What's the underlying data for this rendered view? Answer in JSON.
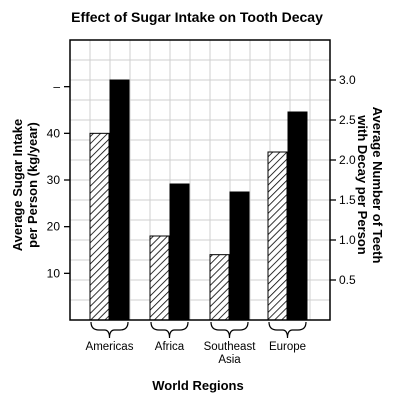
{
  "chart_data": {
    "type": "bar",
    "title": "Effect of Sugar Intake on Tooth Decay",
    "xlabel": "World Regions",
    "categories": [
      "Americas",
      "Africa",
      "Southeast Asia",
      "Europe"
    ],
    "category_lines": [
      [
        "Americas"
      ],
      [
        "Africa"
      ],
      [
        "Southeast",
        "Asia"
      ],
      [
        "Europe"
      ]
    ],
    "left_axis": {
      "label_lines": [
        "Average Sugar Intake",
        "per Person (kg/year)"
      ],
      "ylim": [
        0,
        60
      ],
      "tick_values": [
        10,
        20,
        30,
        40,
        50
      ],
      "tick_labels": [
        "10",
        "20",
        "30",
        "40",
        "–"
      ]
    },
    "right_axis": {
      "label_lines": [
        "Average Number of Teeth",
        "with Decay per Person"
      ],
      "ylim": [
        0,
        3.5
      ],
      "tick_values": [
        0.5,
        1.0,
        1.5,
        2.0,
        2.5,
        3.0
      ],
      "tick_labels": [
        "0.5",
        "1.0",
        "1.5",
        "2.0",
        "2.5",
        "3.0"
      ]
    },
    "series": [
      {
        "axis": "left",
        "pattern": "hatched",
        "values": [
          40,
          18,
          14,
          36
        ]
      },
      {
        "axis": "right",
        "pattern": "solid",
        "color": "#000000",
        "values": [
          3.0,
          1.7,
          1.6,
          2.6
        ]
      }
    ],
    "grid": true
  }
}
